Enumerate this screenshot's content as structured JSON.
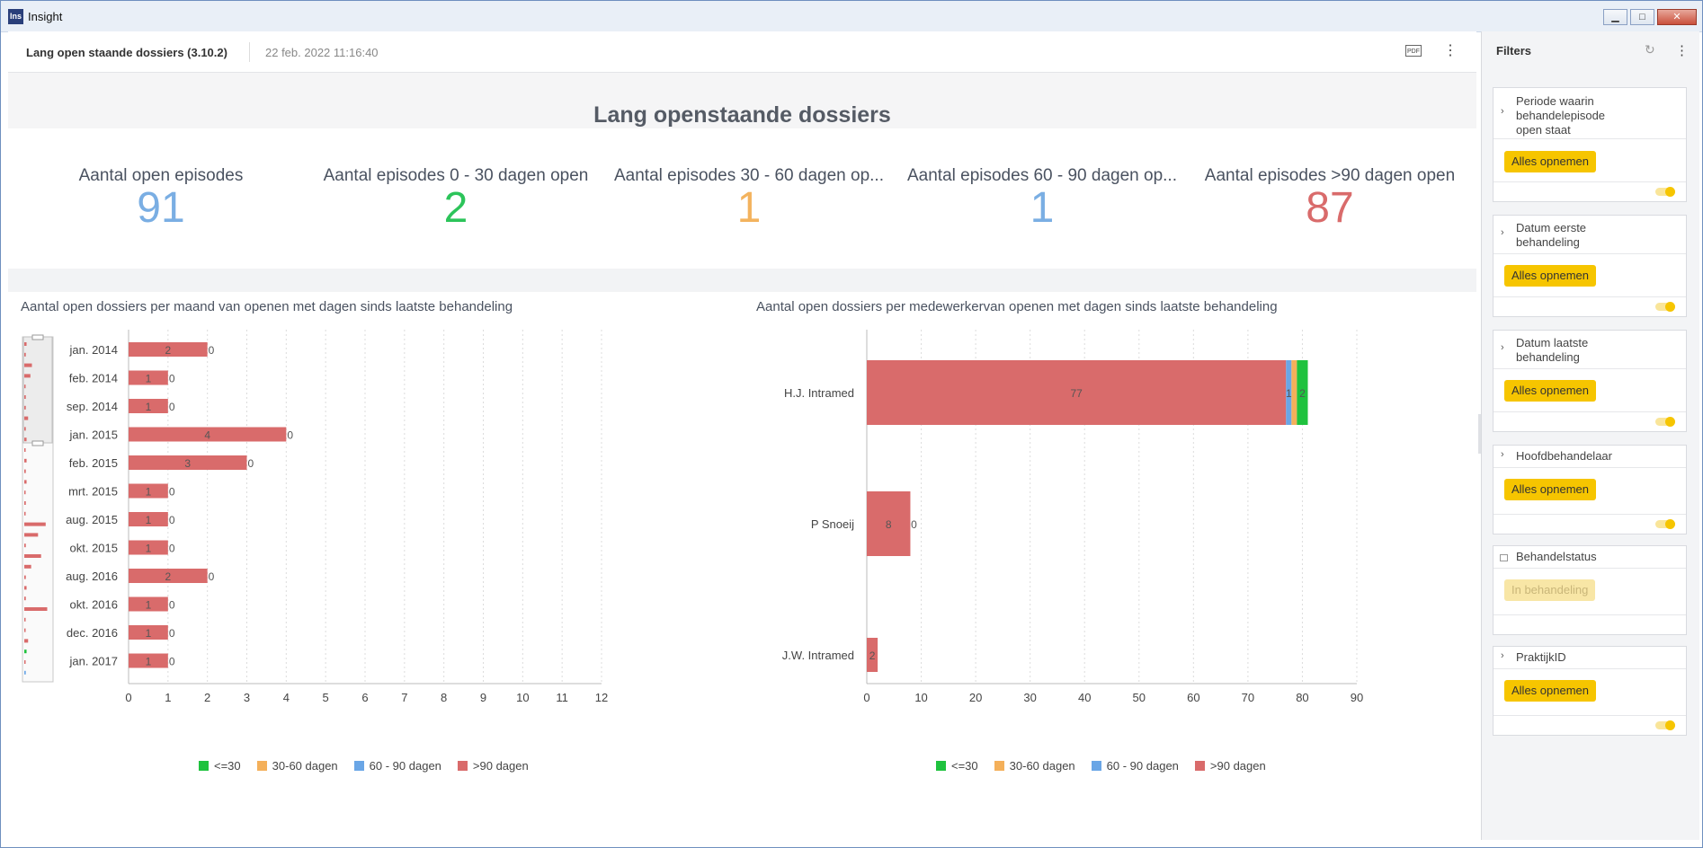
{
  "window": {
    "title": "Insight",
    "icon_label": "Ins"
  },
  "header": {
    "report_name": "Lang open staande dossiers (3.10.2)",
    "datetime": "22 feb. 2022 11:16:40",
    "pdf_label": "PDF"
  },
  "page_title": "Lang openstaande dossiers",
  "kpis": [
    {
      "label": "Aantal open episodes",
      "value": "91",
      "color": "#7aaee3"
    },
    {
      "label": "Aantal episodes 0 - 30 dagen open",
      "value": "2",
      "color": "#2cc45a"
    },
    {
      "label": "Aantal episodes 30 - 60 dagen op...",
      "value": "1",
      "color": "#f3b35e"
    },
    {
      "label": "Aantal episodes 60 - 90 dagen op...",
      "value": "1",
      "color": "#7aaee3"
    },
    {
      "label": "Aantal episodes >90 dagen open",
      "value": "87",
      "color": "#d96b6b"
    }
  ],
  "colors": {
    "le30": "#1fc23e",
    "d30_60": "#f4b05a",
    "d60_90": "#6aa6e6",
    "gt90": "#d96b6b",
    "accent": "#f6c500"
  },
  "legend": [
    "<=30",
    "30-60 dagen",
    "60 - 90 dagen",
    ">90 dagen"
  ],
  "chart_data": [
    {
      "type": "bar",
      "orientation": "horizontal",
      "stacked": true,
      "title": "Aantal open dossiers per maand van openen met dagen sinds laatste behandeling",
      "categories": [
        "jan. 2014",
        "feb. 2014",
        "sep. 2014",
        "jan. 2015",
        "feb. 2015",
        "mrt. 2015",
        "aug. 2015",
        "okt. 2015",
        "aug. 2016",
        "okt. 2016",
        "dec. 2016",
        "jan. 2017"
      ],
      "series": [
        {
          "name": "<=30",
          "values": [
            0,
            0,
            0,
            0,
            0,
            0,
            0,
            0,
            0,
            0,
            0,
            0
          ]
        },
        {
          "name": "30-60 dagen",
          "values": [
            0,
            0,
            0,
            0,
            0,
            0,
            0,
            0,
            0,
            0,
            0,
            0
          ]
        },
        {
          "name": "60 - 90 dagen",
          "values": [
            0,
            0,
            0,
            0,
            0,
            0,
            0,
            0,
            0,
            0,
            0,
            0
          ]
        },
        {
          "name": ">90 dagen",
          "values": [
            2,
            1,
            1,
            4,
            3,
            1,
            1,
            1,
            2,
            1,
            1,
            1
          ]
        }
      ],
      "end_labels": [
        "0",
        "0",
        "0",
        "0",
        "0",
        "0",
        "0",
        "0",
        "0",
        "0",
        "0",
        "0"
      ],
      "xlim": [
        0,
        12
      ],
      "xticks": [
        0,
        1,
        2,
        3,
        4,
        5,
        6,
        7,
        8,
        9,
        10,
        11,
        12
      ],
      "grid": true,
      "legend_position": "bottom",
      "navigator": true
    },
    {
      "type": "bar",
      "orientation": "horizontal",
      "stacked": true,
      "title": "Aantal open dossiers per medewerkervan openen met dagen sinds laatste behandeling",
      "categories": [
        "H.J. Intramed",
        "P Snoeij",
        "J.W. Intramed"
      ],
      "series": [
        {
          "name": ">90 dagen",
          "values": [
            77,
            8,
            2
          ]
        },
        {
          "name": "60 - 90 dagen",
          "values": [
            1,
            0,
            0
          ]
        },
        {
          "name": "30-60 dagen",
          "values": [
            1,
            0,
            0
          ]
        },
        {
          "name": "<=30",
          "values": [
            2,
            0,
            0
          ]
        }
      ],
      "bar_labels": [
        [
          "77",
          "1",
          "",
          "2"
        ],
        [
          "8",
          "0",
          "",
          ""
        ],
        [
          "2",
          "",
          "",
          ""
        ]
      ],
      "xlim": [
        0,
        90
      ],
      "xticks": [
        0,
        10,
        20,
        30,
        40,
        50,
        60,
        70,
        80,
        90
      ],
      "grid": true,
      "legend_position": "bottom"
    }
  ],
  "sidebar": {
    "title": "Filters",
    "filters": [
      {
        "label_lines": [
          "Periode waarin",
          "behandelepisode",
          "open staat"
        ],
        "button": "Alles opnemen",
        "locked": false
      },
      {
        "label_lines": [
          "Datum eerste",
          "behandeling"
        ],
        "button": "Alles opnemen",
        "locked": false
      },
      {
        "label_lines": [
          "Datum laatste",
          "behandeling"
        ],
        "button": "Alles opnemen",
        "locked": false
      },
      {
        "label_lines": [
          "Hoofdbehandelaar"
        ],
        "button": "Alles opnemen",
        "locked": false
      },
      {
        "label_lines": [
          "Behandelstatus"
        ],
        "button": "In behandeling",
        "locked": true
      },
      {
        "label_lines": [
          "PraktijkID"
        ],
        "button": "Alles opnemen",
        "locked": false
      }
    ]
  }
}
